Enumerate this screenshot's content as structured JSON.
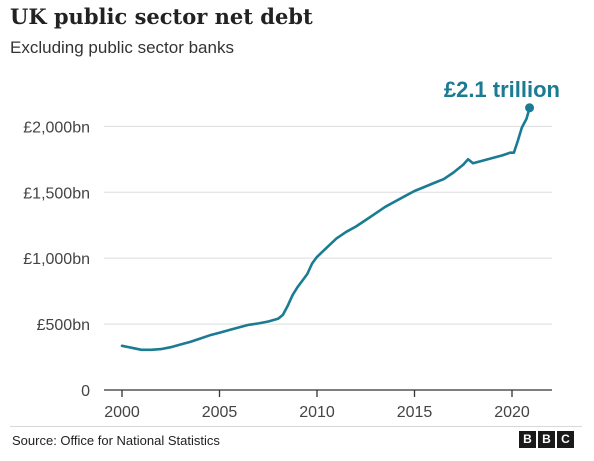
{
  "title": "UK public sector net debt",
  "subtitle": "Excluding public sector banks",
  "source": "Source: Office for National Statistics",
  "brand": {
    "letters": [
      "B",
      "B",
      "C"
    ]
  },
  "colors": {
    "line": "#1a7b93",
    "grid": "#dddddd",
    "axis": "#333333",
    "text": "#222222"
  },
  "chart_data": {
    "type": "line",
    "title": "UK public sector net debt",
    "subtitle": "Excluding public sector banks",
    "xlabel": "",
    "ylabel": "",
    "xlim": [
      2000,
      2021.4
    ],
    "ylim": [
      0,
      2200
    ],
    "grid": "horizontal",
    "x_ticks": [
      2000,
      2005,
      2010,
      2015,
      2020
    ],
    "x_tick_labels": [
      "2000",
      "2005",
      "2010",
      "2015",
      "2020"
    ],
    "y_ticks": [
      0,
      500,
      1000,
      1500,
      2000
    ],
    "y_tick_labels": [
      "0",
      "£500bn",
      "£1,000bn",
      "£1,500bn",
      "£2,000bn"
    ],
    "annotation": {
      "text": "£2.1 trillion",
      "x": 2020.9,
      "y": 2141
    },
    "series": [
      {
        "x": [
          2000,
          2000.5,
          2001,
          2001.5,
          2002,
          2002.5,
          2003,
          2003.5,
          2004,
          2004.5,
          2005,
          2005.5,
          2006,
          2006.5,
          2007,
          2007.5,
          2008,
          2008.25,
          2008.5,
          2008.75,
          2009,
          2009.25,
          2009.5,
          2009.75,
          2010,
          2010.5,
          2011,
          2011.5,
          2012,
          2012.5,
          2013,
          2013.5,
          2014,
          2014.5,
          2015,
          2015.5,
          2016,
          2016.5,
          2017,
          2017.5,
          2017.75,
          2018,
          2018.5,
          2019,
          2019.5,
          2019.9,
          2020.1,
          2020.3,
          2020.5,
          2020.75,
          2020.9
        ],
        "y": [
          335,
          320,
          305,
          305,
          310,
          325,
          345,
          365,
          390,
          415,
          435,
          455,
          475,
          495,
          505,
          520,
          540,
          570,
          640,
          720,
          780,
          830,
          880,
          960,
          1010,
          1080,
          1150,
          1200,
          1240,
          1290,
          1340,
          1390,
          1430,
          1470,
          1510,
          1540,
          1570,
          1600,
          1650,
          1710,
          1750,
          1720,
          1740,
          1760,
          1780,
          1800,
          1800,
          1890,
          1990,
          2060,
          2141
        ]
      }
    ]
  }
}
